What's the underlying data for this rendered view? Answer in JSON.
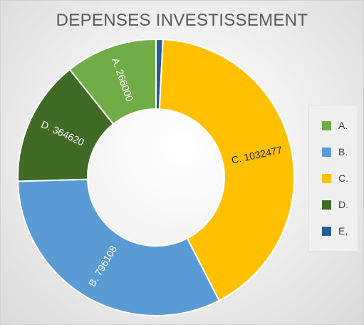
{
  "chart_data": {
    "type": "donut",
    "title": "DEPENSES INVESTISSEMENT",
    "categories": [
      "A.",
      "B.",
      "C.",
      "D.",
      "E,"
    ],
    "values": [
      266000,
      796108,
      1032477,
      364620,
      20000
    ],
    "data_labels": [
      "A. 266000",
      "B. 796108",
      "C. 1032477",
      "D. 364620",
      ""
    ],
    "colors": [
      "#70AD47",
      "#5B9BD5",
      "#FFC000",
      "#3F6B26",
      "#255E91"
    ],
    "slice_order": [
      "E,",
      "C.",
      "B.",
      "D.",
      "A."
    ],
    "start_angle_deg": 0,
    "direction": "clockwise",
    "legend_position": "right"
  }
}
